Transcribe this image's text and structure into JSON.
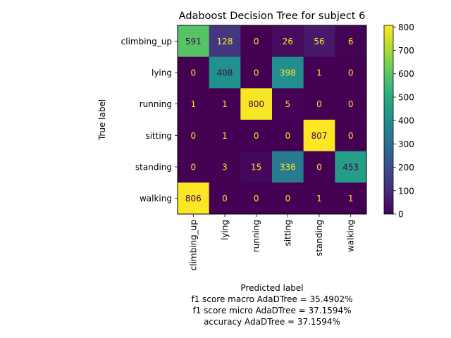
{
  "chart_data": {
    "type": "heatmap",
    "title": "Adaboost Decision Tree for subject 6",
    "xlabel": "Predicted label",
    "ylabel": "True label",
    "x_categories": [
      "climbing_up",
      "lying",
      "running",
      "sitting",
      "standing",
      "walking"
    ],
    "y_categories": [
      "climbing_up",
      "lying",
      "running",
      "sitting",
      "standing",
      "walking"
    ],
    "values": [
      [
        591,
        128,
        0,
        26,
        56,
        6
      ],
      [
        0,
        408,
        0,
        398,
        1,
        0
      ],
      [
        1,
        1,
        800,
        5,
        0,
        0
      ],
      [
        0,
        1,
        0,
        0,
        807,
        0
      ],
      [
        0,
        3,
        15,
        336,
        0,
        453
      ],
      [
        806,
        0,
        0,
        0,
        1,
        1
      ]
    ],
    "colorbar": {
      "min": 0,
      "max": 807,
      "ticks": [
        0,
        100,
        200,
        300,
        400,
        500,
        600,
        700,
        800
      ]
    },
    "colormap": "viridis",
    "footer_lines": [
      "f1 score macro AdaDTree = 35.4902%",
      "f1 score micro AdaDTree = 37.1594%",
      "accuracy AdaDTree = 37.1594%"
    ]
  }
}
